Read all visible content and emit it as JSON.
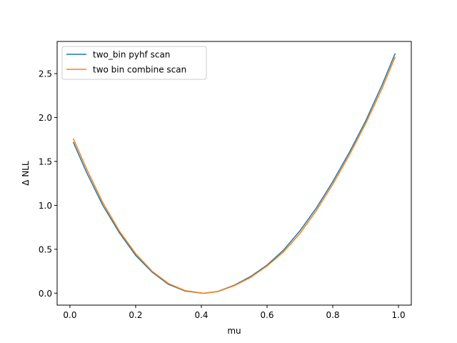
{
  "chart_data": {
    "type": "line",
    "xlabel": "mu",
    "ylabel": "Δ NLL",
    "xlim": [
      -0.039,
      1.039
    ],
    "ylim": [
      -0.136,
      2.866
    ],
    "xticks": [
      0.0,
      0.2,
      0.4,
      0.6,
      0.8,
      1.0
    ],
    "xtick_labels": [
      "0.0",
      "0.2",
      "0.4",
      "0.6",
      "0.8",
      "1.0"
    ],
    "yticks": [
      0.0,
      0.5,
      1.0,
      1.5,
      2.0,
      2.5
    ],
    "ytick_labels": [
      "0.0",
      "0.5",
      "1.0",
      "1.5",
      "2.0",
      "2.5"
    ],
    "grid": false,
    "legend_position": "upper-left",
    "series": [
      {
        "name": "two_bin pyhf scan",
        "color": "#1f77b4",
        "x": [
          0.01,
          0.05,
          0.1,
          0.15,
          0.2,
          0.25,
          0.3,
          0.35,
          0.4,
          0.41,
          0.45,
          0.5,
          0.55,
          0.6,
          0.65,
          0.7,
          0.75,
          0.8,
          0.85,
          0.9,
          0.95,
          0.99
        ],
        "y": [
          1.72,
          1.38,
          1.0,
          0.69,
          0.43,
          0.24,
          0.1,
          0.025,
          0.001,
          0.0,
          0.02,
          0.09,
          0.19,
          0.32,
          0.49,
          0.71,
          0.97,
          1.27,
          1.6,
          1.96,
          2.37,
          2.73
        ]
      },
      {
        "name": "two bin combine scan",
        "color": "#ff7f0e",
        "x": [
          0.01,
          0.05,
          0.1,
          0.15,
          0.2,
          0.25,
          0.3,
          0.35,
          0.4,
          0.41,
          0.45,
          0.5,
          0.55,
          0.6,
          0.65,
          0.7,
          0.75,
          0.8,
          0.85,
          0.9,
          0.95,
          0.99
        ],
        "y": [
          1.76,
          1.42,
          1.03,
          0.71,
          0.45,
          0.25,
          0.11,
          0.03,
          0.002,
          0.0,
          0.018,
          0.085,
          0.18,
          0.31,
          0.47,
          0.68,
          0.94,
          1.24,
          1.57,
          1.93,
          2.33,
          2.69
        ]
      }
    ]
  }
}
